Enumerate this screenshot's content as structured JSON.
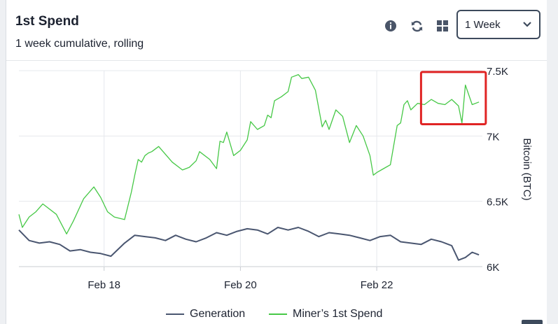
{
  "header": {
    "title": "1st Spend",
    "subtitle": "1 week cumulative, rolling",
    "period_select": {
      "selected": "1 Week"
    },
    "icons": [
      "info-icon",
      "refresh-icon",
      "grid-icon",
      "chevron-down-icon"
    ]
  },
  "colors": {
    "generation": "#4a5670",
    "first_spend": "#46c846",
    "highlight": "#e02424"
  },
  "chart_data": {
    "type": "line",
    "ylabel": "Bitcoin (BTC)",
    "y_ticks": [
      "7.5K",
      "7K",
      "6.5K",
      "6K"
    ],
    "y_tick_values": [
      7500,
      7000,
      6500,
      6000
    ],
    "ylim": [
      6000,
      7500
    ],
    "x_tick_labels": [
      "Feb 18",
      "Feb 20",
      "Feb 22"
    ],
    "x_tick_values": [
      18,
      20,
      22
    ],
    "xlim": [
      16.75,
      23.55
    ],
    "grid": true,
    "legend_position": "bottom",
    "series": [
      {
        "name": "Generation",
        "x": [
          16.75,
          16.9,
          17.05,
          17.2,
          17.35,
          17.5,
          17.65,
          17.8,
          17.95,
          18.1,
          18.3,
          18.45,
          18.6,
          18.75,
          18.9,
          19.05,
          19.2,
          19.35,
          19.5,
          19.65,
          19.8,
          19.95,
          20.1,
          20.25,
          20.4,
          20.55,
          20.7,
          20.85,
          21.0,
          21.15,
          21.3,
          21.45,
          21.6,
          21.75,
          21.9,
          22.05,
          22.2,
          22.35,
          22.5,
          22.65,
          22.8,
          22.95,
          23.1,
          23.2,
          23.3,
          23.4,
          23.5
        ],
        "values": [
          6280,
          6200,
          6180,
          6190,
          6170,
          6120,
          6130,
          6110,
          6100,
          6080,
          6180,
          6240,
          6230,
          6220,
          6200,
          6240,
          6210,
          6190,
          6220,
          6260,
          6240,
          6270,
          6290,
          6280,
          6250,
          6300,
          6280,
          6300,
          6270,
          6230,
          6260,
          6250,
          6240,
          6220,
          6200,
          6230,
          6240,
          6190,
          6180,
          6170,
          6210,
          6190,
          6160,
          6050,
          6070,
          6110,
          6090
        ]
      },
      {
        "name": "Miner’s 1st Spend",
        "x": [
          16.75,
          16.8,
          16.9,
          17.0,
          17.1,
          17.3,
          17.45,
          17.55,
          17.7,
          17.85,
          17.95,
          18.05,
          18.15,
          18.3,
          18.4,
          18.45,
          18.5,
          18.55,
          18.6,
          18.65,
          18.7,
          18.8,
          19.0,
          19.15,
          19.25,
          19.35,
          19.4,
          19.55,
          19.65,
          19.7,
          19.75,
          19.8,
          19.9,
          20.0,
          20.1,
          20.15,
          20.25,
          20.35,
          20.4,
          20.45,
          20.5,
          20.6,
          20.7,
          20.75,
          20.85,
          20.9,
          21.0,
          21.1,
          21.2,
          21.25,
          21.3,
          21.4,
          21.5,
          21.6,
          21.7,
          21.8,
          21.9,
          21.95,
          22.0,
          22.1,
          22.2,
          22.3,
          22.35,
          22.4,
          22.45,
          22.5,
          22.6,
          22.7,
          22.8,
          22.9,
          23.0,
          23.1,
          23.2,
          23.25,
          23.3,
          23.4,
          23.5
        ],
        "values": [
          6400,
          6300,
          6380,
          6420,
          6480,
          6400,
          6250,
          6350,
          6520,
          6610,
          6530,
          6420,
          6380,
          6360,
          6570,
          6700,
          6820,
          6800,
          6850,
          6870,
          6880,
          6920,
          6800,
          6740,
          6760,
          6810,
          6880,
          6820,
          6750,
          6960,
          6950,
          7030,
          6850,
          6890,
          6970,
          7110,
          7050,
          7080,
          7160,
          7140,
          7270,
          7300,
          7340,
          7450,
          7470,
          7440,
          7450,
          7350,
          7070,
          7120,
          7050,
          7200,
          7150,
          6950,
          7080,
          7000,
          6850,
          6700,
          6720,
          6750,
          6780,
          7080,
          7100,
          7240,
          7270,
          7200,
          7250,
          7240,
          7280,
          7250,
          7240,
          7280,
          7230,
          7100,
          7390,
          7240,
          7260
        ]
      }
    ],
    "annotation": {
      "type": "highlight-box",
      "x_range": [
        22.65,
        23.6
      ],
      "y_range": [
        7090,
        7490
      ]
    }
  },
  "legend": {
    "generation_label": "Generation",
    "first_spend_label": "Miner’s 1st Spend"
  }
}
